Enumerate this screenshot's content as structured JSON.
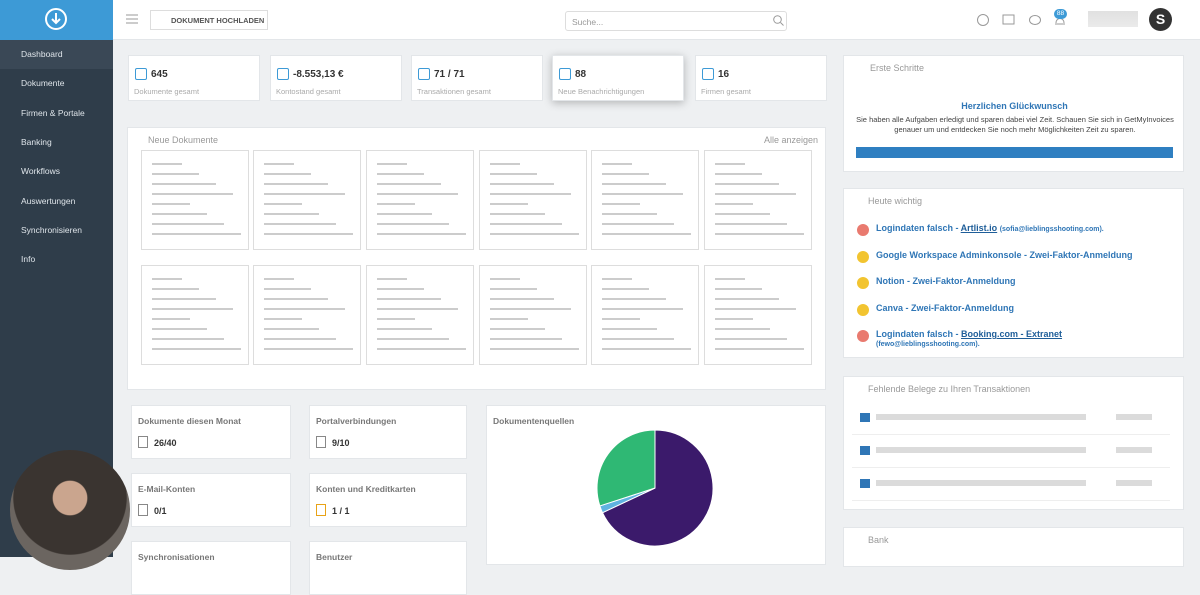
{
  "header": {
    "upload_button": "DOKUMENT HOCHLADEN",
    "search_placeholder": "Suche...",
    "notification_badge": "88",
    "avatar": "S"
  },
  "sidebar": {
    "items": [
      "Dashboard",
      "Dokumente",
      "Firmen & Portale",
      "Banking",
      "Workflows",
      "Auswertungen",
      "Synchronisieren",
      "Info"
    ]
  },
  "stats": [
    {
      "value": "645",
      "label": "Dokumente gesamt"
    },
    {
      "value": "-8.553,13 €",
      "label": "Kontostand gesamt"
    },
    {
      "value": "71 / 71",
      "label": "Transaktionen gesamt"
    },
    {
      "value": "88",
      "label": "Neue Benachrichtigungen"
    },
    {
      "value": "16",
      "label": "Firmen gesamt"
    }
  ],
  "documents": {
    "title": "Neue Dokumente",
    "show_all": "Alle anzeigen"
  },
  "widgets": [
    {
      "title": "Dokumente diesen Monat",
      "value": "26/40"
    },
    {
      "title": "Portalverbindungen",
      "value": "9/10"
    },
    {
      "title": "E-Mail-Konten",
      "value": "0/1"
    },
    {
      "title": "Konten und Kreditkarten",
      "value": "1 / 1"
    },
    {
      "title": "Synchronisationen"
    },
    {
      "title": "Benutzer"
    }
  ],
  "sources": {
    "title": "Dokumentenquellen",
    "chart_data": {
      "type": "pie",
      "values": [
        68,
        2,
        30
      ],
      "colors": [
        "#3b1a6b",
        "#5fb3e0",
        "#2fb874"
      ]
    }
  },
  "first_steps": {
    "title": "Erste Schritte",
    "heading": "Herzlichen Glückwunsch",
    "text": "Sie haben alle Aufgaben erledigt und sparen dabei viel Zeit. Schauen Sie sich in GetMyInvoices genauer um und entdecken Sie noch mehr Möglichkeiten Zeit zu sparen."
  },
  "important": {
    "title": "Heute wichtig",
    "items": [
      {
        "text": "Logindaten falsch - ",
        "link": "Artlist.io",
        "note": "(sofia@lieblingsshooting.com).",
        "color": "#e97a6f"
      },
      {
        "text": "Google Workspace Adminkonsole - Zwei-Faktor-Anmeldung",
        "color": "#f2c430"
      },
      {
        "text": "Notion - Zwei-Faktor-Anmeldung",
        "color": "#f2c430"
      },
      {
        "text": "Canva - Zwei-Faktor-Anmeldung",
        "color": "#f2c430"
      },
      {
        "text": "Logindaten falsch - ",
        "link": "Booking.com - Extranet",
        "note": "(fewo@lieblingsshooting.com).",
        "color": "#e97a6f"
      }
    ]
  },
  "missing": {
    "title": "Fehlende Belege zu Ihren Transaktionen"
  },
  "bank": {
    "title": "Bank"
  }
}
